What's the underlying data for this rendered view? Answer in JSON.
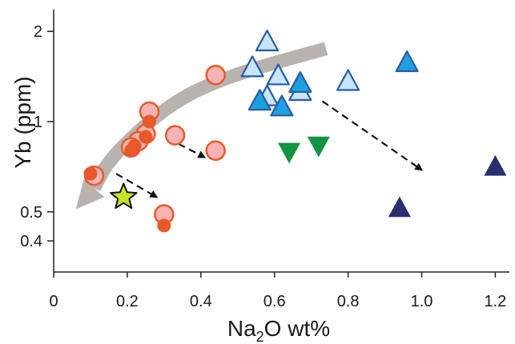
{
  "chart_data": {
    "type": "scatter",
    "title": "",
    "xlabel": {
      "prefix": "Na",
      "sub": "2",
      "suffix": "O wt%"
    },
    "ylabel": "Yb (ppm)",
    "xlim": [
      0,
      1.25
    ],
    "ylim": [
      0.35,
      2.4
    ],
    "y_scale": "log",
    "grid": false,
    "x_ticks": [
      0,
      0.2,
      0.4,
      0.6,
      0.8,
      1.0,
      1.2
    ],
    "x_tick_labels": [
      "0",
      "0.2",
      "0.4",
      "0.6",
      "0.8",
      "1.0",
      "1.2"
    ],
    "y_ticks": [
      0.4,
      0.5,
      1,
      2
    ],
    "y_tick_labels": [
      "0.4",
      "0.5",
      "1",
      "2"
    ],
    "colors": {
      "pink_circle_fill": "#f6b3b3",
      "circle_edge": "#e8592a",
      "orange_dot": "#e8592a",
      "light_blue_triangle": "#c7e6f7",
      "blue_triangle": "#1ea0e0",
      "triangle_edge": "#2a5aa8",
      "green_triangle": "#139443",
      "navy_triangle": "#2b2f70",
      "star_fill": "#c9e023",
      "trend_arrow": "#b8b3ae"
    },
    "series": [
      {
        "marker": "circle-open",
        "points": [
          [
            0.11,
            0.66
          ],
          [
            0.26,
            1.08
          ],
          [
            0.25,
            0.91
          ],
          [
            0.23,
            0.86
          ],
          [
            0.21,
            0.82
          ],
          [
            0.33,
            0.9
          ],
          [
            0.44,
            1.43
          ],
          [
            0.44,
            0.8
          ],
          [
            0.3,
            0.49
          ]
        ]
      },
      {
        "marker": "dot",
        "points": [
          [
            0.1,
            0.67
          ],
          [
            0.26,
            1.0
          ],
          [
            0.25,
            0.89
          ],
          [
            0.22,
            0.83
          ],
          [
            0.21,
            0.8
          ],
          [
            0.3,
            0.45
          ]
        ]
      },
      {
        "marker": "triangle-light",
        "points": [
          [
            0.58,
            1.83
          ],
          [
            0.54,
            1.5
          ],
          [
            0.61,
            1.41
          ],
          [
            0.58,
            1.2
          ],
          [
            0.67,
            1.25
          ],
          [
            0.8,
            1.35
          ]
        ]
      },
      {
        "marker": "triangle-blue",
        "points": [
          [
            0.67,
            1.33
          ],
          [
            0.56,
            1.16
          ],
          [
            0.62,
            1.11
          ],
          [
            0.96,
            1.56
          ]
        ]
      },
      {
        "marker": "triangle-green",
        "points": [
          [
            0.64,
            0.8
          ],
          [
            0.72,
            0.84
          ]
        ]
      },
      {
        "marker": "triangle-navy",
        "points": [
          [
            0.94,
            0.51
          ],
          [
            1.2,
            0.7
          ]
        ]
      },
      {
        "marker": "star",
        "points": [
          [
            0.19,
            0.56
          ]
        ]
      }
    ],
    "trend_arrow": {
      "path": [
        [
          0.74,
          1.75
        ],
        [
          0.56,
          1.53
        ],
        [
          0.4,
          1.3
        ],
        [
          0.3,
          1.1
        ],
        [
          0.2,
          0.86
        ],
        [
          0.14,
          0.71
        ],
        [
          0.11,
          0.6
        ]
      ],
      "head_tip": [
        0.06,
        0.51
      ]
    },
    "annotation_arrows": [
      {
        "from": [
          0.31,
          0.88
        ],
        "to": [
          0.41,
          0.76
        ]
      },
      {
        "from": [
          0.17,
          0.67
        ],
        "to": [
          0.28,
          0.56
        ]
      },
      {
        "from": [
          0.73,
          1.17
        ],
        "to": [
          1.0,
          0.69
        ]
      }
    ]
  }
}
